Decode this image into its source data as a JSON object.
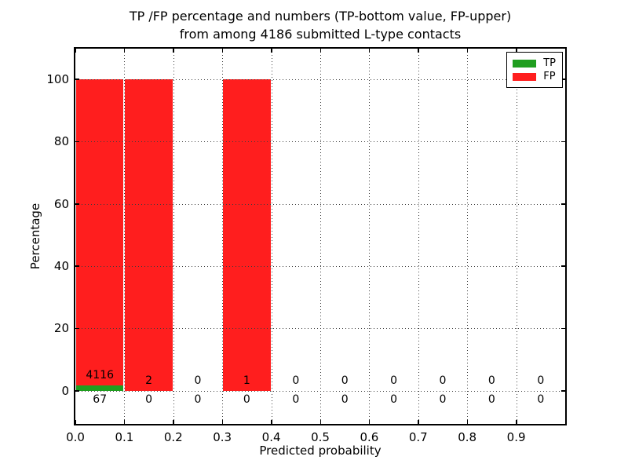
{
  "title": {
    "line1": "TP /FP percentage and numbers (TP-bottom value, FP-upper)",
    "line2": "from among 4186 submitted L-type contacts"
  },
  "axes": {
    "xlabel": "Predicted probability",
    "ylabel": "Percentage"
  },
  "legend": {
    "items": [
      {
        "label": "TP",
        "color": "#1f9e1f"
      },
      {
        "label": "FP",
        "color": "#ff1e1e"
      }
    ]
  },
  "chart_data": {
    "type": "bar",
    "stacked": true,
    "title": "TP /FP percentage and numbers (TP-bottom value, FP-upper)\nfrom among 4186 submitted L-type contacts",
    "xlabel": "Predicted probability",
    "ylabel": "Percentage",
    "xlim": [
      0.0,
      1.0
    ],
    "ylim": [
      -10.7,
      109.8
    ],
    "grid": true,
    "legend_position": "upper right",
    "bin_width": 0.1,
    "colors": {
      "tp": "#1f9e1f",
      "fp": "#ff1e1e",
      "grid": "#3c3c3c",
      "axis": "#000000",
      "background": "#ffffff"
    },
    "yticks": [
      {
        "value": 0,
        "label": "0"
      },
      {
        "value": 20,
        "label": "20"
      },
      {
        "value": 40,
        "label": "40"
      },
      {
        "value": 60,
        "label": "60"
      },
      {
        "value": 80,
        "label": "80"
      },
      {
        "value": 100,
        "label": "100"
      }
    ],
    "xticks": [
      {
        "value": 0.0,
        "label": "0.0"
      },
      {
        "value": 0.1,
        "label": "0.1"
      },
      {
        "value": 0.2,
        "label": "0.2"
      },
      {
        "value": 0.3,
        "label": "0.3"
      },
      {
        "value": 0.4,
        "label": "0.4"
      },
      {
        "value": 0.5,
        "label": "0.5"
      },
      {
        "value": 0.6,
        "label": "0.6"
      },
      {
        "value": 0.7,
        "label": "0.7"
      },
      {
        "value": 0.8,
        "label": "0.8"
      },
      {
        "value": 0.9,
        "label": "0.9"
      }
    ],
    "series": [
      {
        "name": "TP",
        "color": "#1f9e1f"
      },
      {
        "name": "FP",
        "color": "#ff1e1e"
      }
    ],
    "bins": [
      {
        "range": [
          0.0,
          0.1
        ],
        "tp_count": 67,
        "fp_count": 4116,
        "tp_pct": 1.6,
        "fp_pct": 98.4
      },
      {
        "range": [
          0.1,
          0.2
        ],
        "tp_count": 0,
        "fp_count": 2,
        "tp_pct": 0,
        "fp_pct": 100
      },
      {
        "range": [
          0.2,
          0.3
        ],
        "tp_count": 0,
        "fp_count": 0,
        "tp_pct": 0,
        "fp_pct": 0
      },
      {
        "range": [
          0.3,
          0.4
        ],
        "tp_count": 0,
        "fp_count": 1,
        "tp_pct": 0,
        "fp_pct": 100
      },
      {
        "range": [
          0.4,
          0.5
        ],
        "tp_count": 0,
        "fp_count": 0,
        "tp_pct": 0,
        "fp_pct": 0
      },
      {
        "range": [
          0.5,
          0.6
        ],
        "tp_count": 0,
        "fp_count": 0,
        "tp_pct": 0,
        "fp_pct": 0
      },
      {
        "range": [
          0.6,
          0.7
        ],
        "tp_count": 0,
        "fp_count": 0,
        "tp_pct": 0,
        "fp_pct": 0
      },
      {
        "range": [
          0.7,
          0.8
        ],
        "tp_count": 0,
        "fp_count": 0,
        "tp_pct": 0,
        "fp_pct": 0
      },
      {
        "range": [
          0.8,
          0.9
        ],
        "tp_count": 0,
        "fp_count": 0,
        "tp_pct": 0,
        "fp_pct": 0
      },
      {
        "range": [
          0.9,
          1.0
        ],
        "tp_count": 0,
        "fp_count": 0,
        "tp_pct": 0,
        "fp_pct": 0
      }
    ]
  }
}
